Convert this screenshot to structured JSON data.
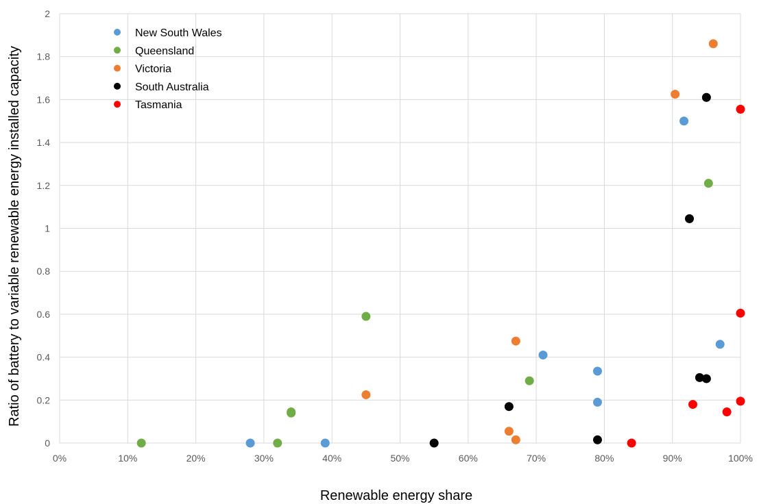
{
  "chart_data": {
    "type": "scatter",
    "title": "",
    "xlabel": "Renewable energy share",
    "ylabel": "Ratio of battery to variable renewable energy installed capacity",
    "xlim": [
      0,
      1
    ],
    "ylim": [
      0,
      2
    ],
    "x_ticks": [
      0,
      0.1,
      0.2,
      0.3,
      0.4,
      0.5,
      0.6,
      0.7,
      0.8,
      0.9,
      1.0
    ],
    "x_tick_labels": [
      "0%",
      "10%",
      "20%",
      "30%",
      "40%",
      "50%",
      "60%",
      "70%",
      "80%",
      "90%",
      "100%"
    ],
    "y_ticks": [
      0,
      0.2,
      0.4,
      0.6,
      0.8,
      1.0,
      1.2,
      1.4,
      1.6,
      1.8,
      2.0
    ],
    "y_tick_labels": [
      "0",
      "0.2",
      "0.4",
      "0.6",
      "0.8",
      "1",
      "1.2",
      "1.4",
      "1.6",
      "1.8",
      "2"
    ],
    "grid": true,
    "legend_position": "top-left",
    "series": [
      {
        "name": "New South Wales",
        "color": "#5b9bd5",
        "points": [
          [
            0.28,
            0.0
          ],
          [
            0.39,
            0.0
          ],
          [
            0.71,
            0.41
          ],
          [
            0.79,
            0.335
          ],
          [
            0.79,
            0.19
          ],
          [
            0.917,
            1.5
          ],
          [
            0.97,
            0.46
          ]
        ]
      },
      {
        "name": "Queensland",
        "color": "#70ad47",
        "points": [
          [
            0.12,
            0.0
          ],
          [
            0.32,
            0.0
          ],
          [
            0.34,
            0.145
          ],
          [
            0.34,
            0.14
          ],
          [
            0.45,
            0.59
          ],
          [
            0.69,
            0.29
          ],
          [
            0.953,
            1.21
          ]
        ]
      },
      {
        "name": "Victoria",
        "color": "#ed7d31",
        "points": [
          [
            0.45,
            0.225
          ],
          [
            0.66,
            0.055
          ],
          [
            0.67,
            0.475
          ],
          [
            0.67,
            0.015
          ],
          [
            0.904,
            1.625
          ],
          [
            0.96,
            1.86
          ]
        ]
      },
      {
        "name": "South Australia",
        "color": "#000000",
        "points": [
          [
            0.55,
            0.0
          ],
          [
            0.66,
            0.17
          ],
          [
            0.79,
            0.015
          ],
          [
            0.925,
            1.045
          ],
          [
            0.94,
            0.305
          ],
          [
            0.95,
            0.3
          ],
          [
            0.95,
            1.61
          ]
        ]
      },
      {
        "name": "Tasmania",
        "color": "#ff0000",
        "points": [
          [
            0.84,
            0.0
          ],
          [
            0.93,
            0.18
          ],
          [
            0.98,
            0.145
          ],
          [
            1.0,
            0.195
          ],
          [
            1.0,
            0.605
          ],
          [
            1.0,
            1.555
          ]
        ]
      }
    ]
  }
}
